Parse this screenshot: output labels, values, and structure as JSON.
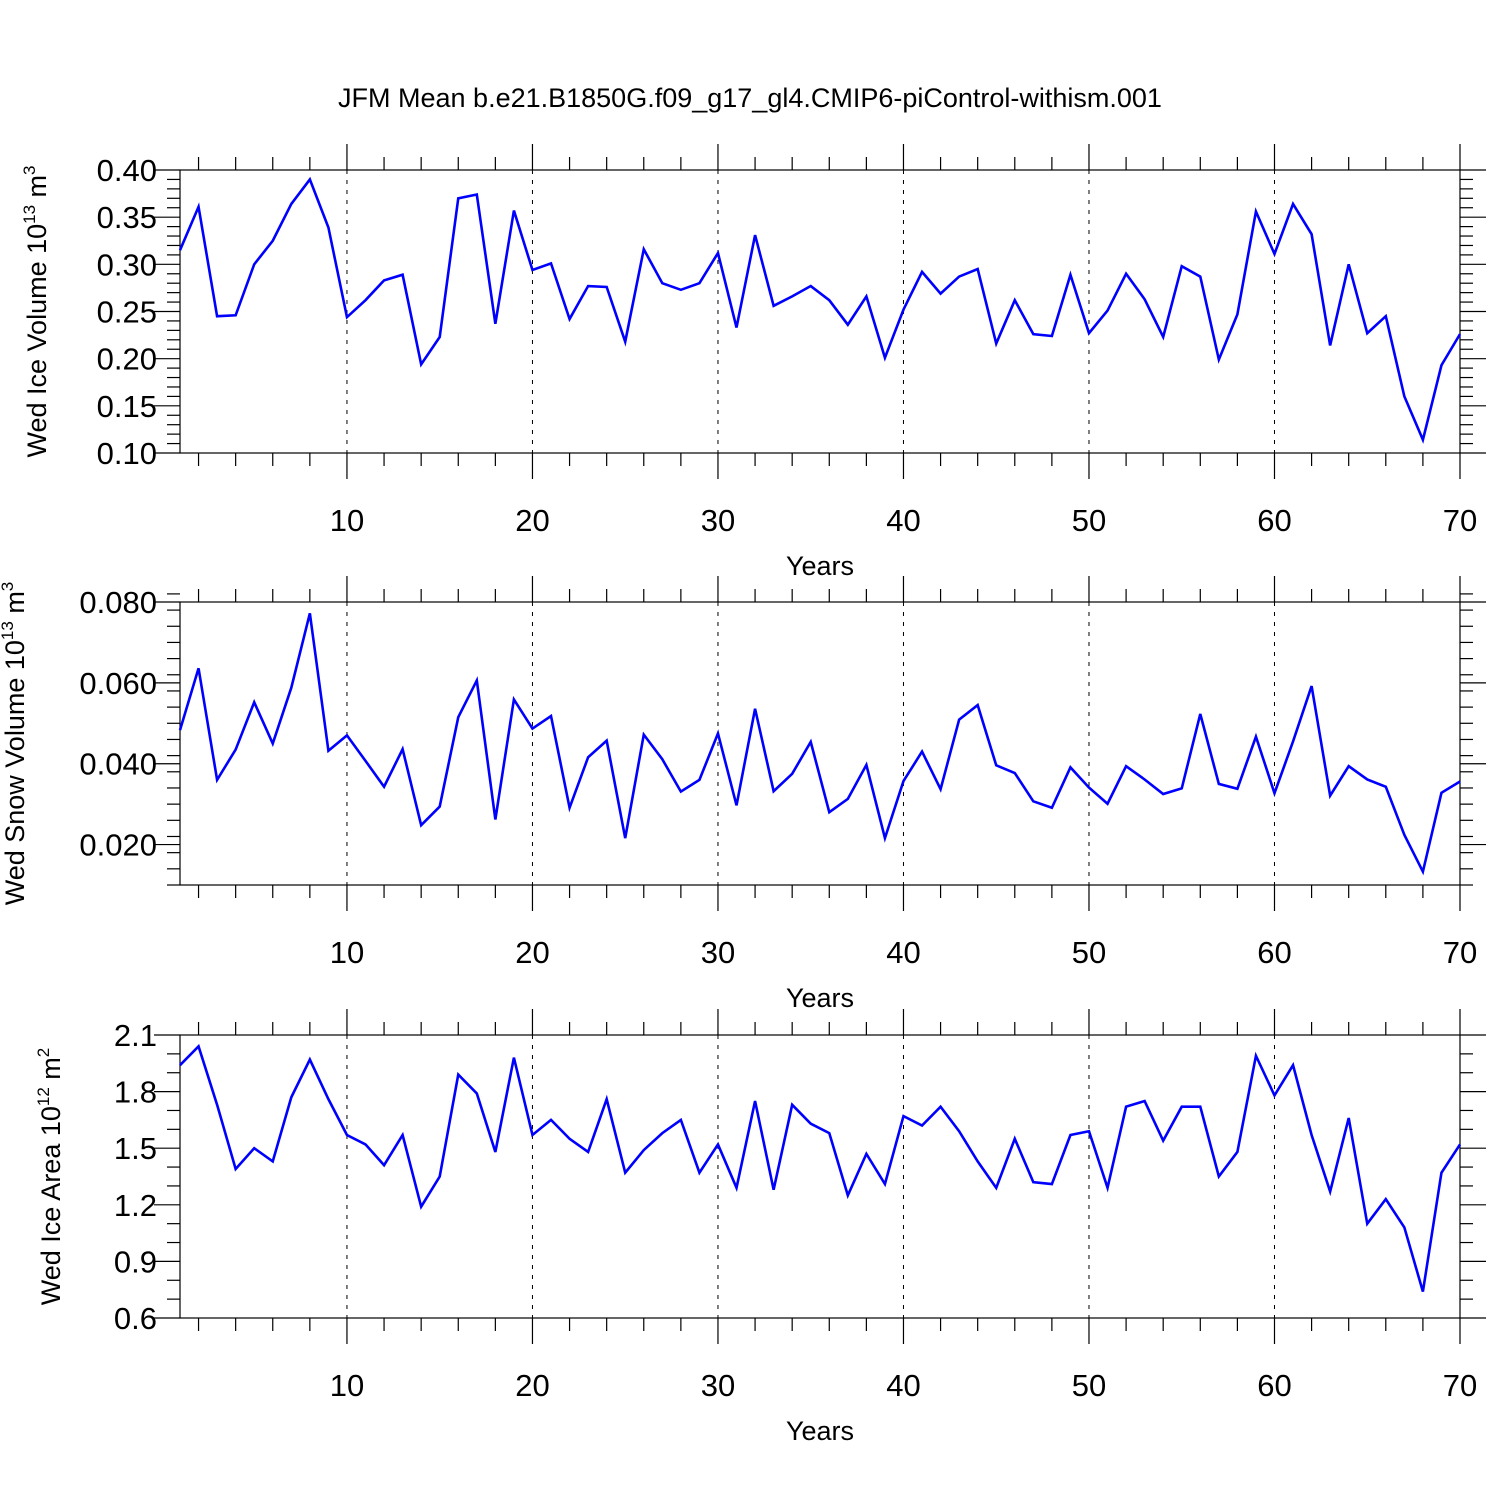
{
  "figure": {
    "title": "JFM Mean b.e21.B1850G.f09_g17_gl4.CMIP6-piControl-withism.001"
  },
  "chart_data": [
    {
      "type": "line",
      "title": "",
      "xlabel": "Years",
      "ylabel": {
        "main": "Wed Ice Volume 10",
        "exp": "13",
        "unit": " m",
        "unit_exp": "3"
      },
      "xlim": [
        1,
        70
      ],
      "ylim": [
        0.1,
        0.4
      ],
      "x_ticks": [
        10,
        20,
        30,
        40,
        50,
        60,
        70
      ],
      "y_ticks": [
        0.1,
        0.15,
        0.2,
        0.25,
        0.3,
        0.35,
        0.4
      ],
      "y_tick_labels": [
        "0.10",
        "0.15",
        "0.20",
        "0.25",
        "0.30",
        "0.35",
        "0.40"
      ],
      "y_minor_step": 0.01,
      "grid": "vertical dashed at major x ticks",
      "series": [
        {
          "name": "Wed Ice Volume",
          "color": "#0000ff",
          "values": [
            0.315,
            0.361,
            0.245,
            0.246,
            0.3,
            0.325,
            0.364,
            0.39,
            0.339,
            0.244,
            0.262,
            0.283,
            0.289,
            0.194,
            0.223,
            0.37,
            0.374,
            0.237,
            0.357,
            0.294,
            0.301,
            0.242,
            0.277,
            0.276,
            0.218,
            0.316,
            0.28,
            0.273,
            0.28,
            0.312,
            0.233,
            0.331,
            0.256,
            0.266,
            0.277,
            0.262,
            0.236,
            0.266,
            0.201,
            0.252,
            0.292,
            0.269,
            0.287,
            0.295,
            0.216,
            0.262,
            0.226,
            0.224,
            0.289,
            0.227,
            0.251,
            0.29,
            0.263,
            0.223,
            0.298,
            0.287,
            0.199,
            0.247,
            0.356,
            0.311,
            0.364,
            0.332,
            0.214,
            0.3,
            0.227,
            0.245,
            0.16,
            0.114,
            0.193,
            0.226
          ]
        }
      ]
    },
    {
      "type": "line",
      "title": "",
      "xlabel": "Years",
      "ylabel": {
        "main": "Wed Snow Volume 10",
        "exp": "13",
        "unit": " m",
        "unit_exp": "3"
      },
      "xlim": [
        1,
        70
      ],
      "ylim": [
        0.01,
        0.08
      ],
      "x_ticks": [
        10,
        20,
        30,
        40,
        50,
        60,
        70
      ],
      "y_ticks": [
        0.02,
        0.04,
        0.06,
        0.08
      ],
      "y_tick_labels": [
        "0.020",
        "0.040",
        "0.060",
        "0.080"
      ],
      "y_minor_step": 0.004,
      "grid": "vertical dashed at major x ticks",
      "series": [
        {
          "name": "Wed Snow Volume",
          "color": "#0000ff",
          "values": [
            0.0483,
            0.0636,
            0.036,
            0.0435,
            0.0552,
            0.045,
            0.0588,
            0.0772,
            0.0432,
            0.047,
            0.0407,
            0.0343,
            0.0436,
            0.0248,
            0.0294,
            0.0515,
            0.0606,
            0.0262,
            0.0559,
            0.0487,
            0.0518,
            0.0291,
            0.0416,
            0.0457,
            0.0216,
            0.0472,
            0.0411,
            0.0331,
            0.036,
            0.0475,
            0.0297,
            0.0536,
            0.0332,
            0.0375,
            0.0454,
            0.028,
            0.0313,
            0.0397,
            0.0216,
            0.0357,
            0.043,
            0.0337,
            0.0509,
            0.0545,
            0.0396,
            0.0377,
            0.0307,
            0.0291,
            0.0391,
            0.0341,
            0.0301,
            0.0394,
            0.0361,
            0.0325,
            0.0339,
            0.0523,
            0.035,
            0.0338,
            0.0467,
            0.0327,
            0.0455,
            0.0592,
            0.0321,
            0.0394,
            0.0361,
            0.0343,
            0.0224,
            0.0133,
            0.0328,
            0.0356
          ]
        }
      ]
    },
    {
      "type": "line",
      "title": "",
      "xlabel": "Years",
      "ylabel": {
        "main": "Wed Ice Area 10",
        "exp": "12",
        "unit": " m",
        "unit_exp": "2"
      },
      "xlim": [
        1,
        70
      ],
      "ylim": [
        0.6,
        2.1
      ],
      "x_ticks": [
        10,
        20,
        30,
        40,
        50,
        60,
        70
      ],
      "y_ticks": [
        0.6,
        0.9,
        1.2,
        1.5,
        1.8,
        2.1
      ],
      "y_tick_labels": [
        "0.6",
        "0.9",
        "1.2",
        "1.5",
        "1.8",
        "2.1"
      ],
      "y_minor_step": 0.1,
      "grid": "vertical dashed at major x ticks",
      "series": [
        {
          "name": "Wed Ice Area",
          "color": "#0000ff",
          "values": [
            1.94,
            2.04,
            1.73,
            1.39,
            1.5,
            1.43,
            1.77,
            1.97,
            1.76,
            1.57,
            1.52,
            1.41,
            1.57,
            1.19,
            1.35,
            1.89,
            1.79,
            1.48,
            1.98,
            1.57,
            1.65,
            1.55,
            1.48,
            1.76,
            1.37,
            1.49,
            1.58,
            1.65,
            1.37,
            1.52,
            1.29,
            1.75,
            1.28,
            1.73,
            1.63,
            1.58,
            1.25,
            1.47,
            1.31,
            1.67,
            1.62,
            1.72,
            1.59,
            1.43,
            1.29,
            1.55,
            1.32,
            1.31,
            1.57,
            1.59,
            1.29,
            1.72,
            1.75,
            1.54,
            1.72,
            1.72,
            1.35,
            1.48,
            1.99,
            1.78,
            1.94,
            1.57,
            1.27,
            1.66,
            1.1,
            1.23,
            1.08,
            0.74,
            1.37,
            1.52
          ]
        }
      ]
    }
  ]
}
